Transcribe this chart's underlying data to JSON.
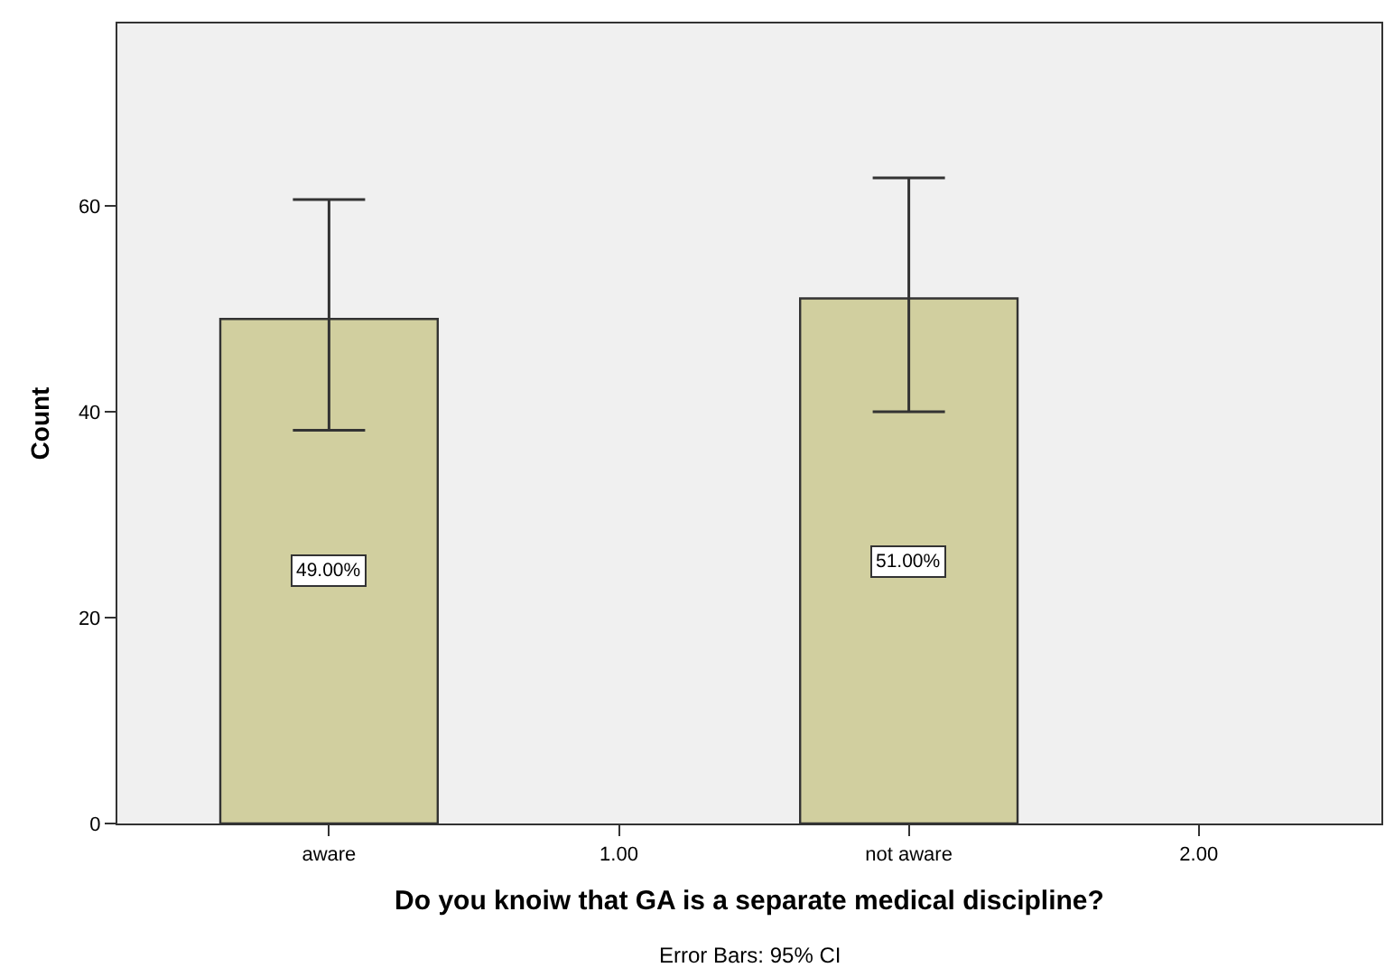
{
  "chart_data": {
    "type": "bar",
    "xlabel": "Do you knoiw that GA is a separate medical discipline?",
    "ylabel": "Count",
    "annotations": [
      "Error Bars: 95% CI"
    ],
    "categories": [
      "aware",
      "1.00",
      "not aware",
      "2.00"
    ],
    "values": [
      49,
      null,
      51,
      null
    ],
    "errors": [
      [
        38.2,
        60.6
      ],
      null,
      [
        40.0,
        62.7
      ],
      null
    ],
    "value_labels": [
      "49.00%",
      null,
      "51.00%",
      null
    ],
    "color": "#d1cf9f",
    "ylim": [
      0,
      77.7
    ],
    "yticks": [
      0,
      20,
      40,
      60
    ]
  }
}
